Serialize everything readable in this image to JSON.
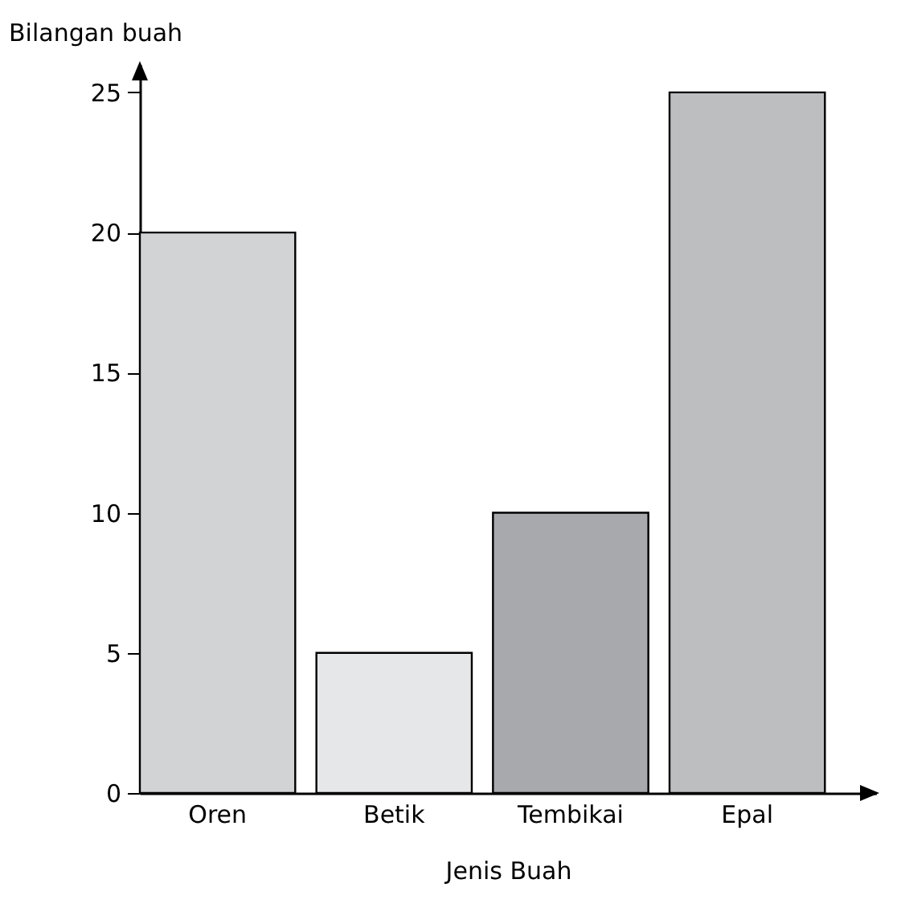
{
  "chart_data": {
    "type": "bar",
    "xlabel": "Jenis Buah",
    "ylabel": "Bilangan buah",
    "categories": [
      "Oren",
      "Betik",
      "Tembikai",
      "Epal"
    ],
    "values": [
      20,
      5,
      10,
      25
    ],
    "colors": [
      "#d1d3d4",
      "#e6e7e8",
      "#a7a9ac",
      "#bcbec0"
    ],
    "ylim": [
      0,
      26
    ],
    "yticks": [
      0,
      5,
      10,
      15,
      20,
      25
    ],
    "grid": false
  }
}
